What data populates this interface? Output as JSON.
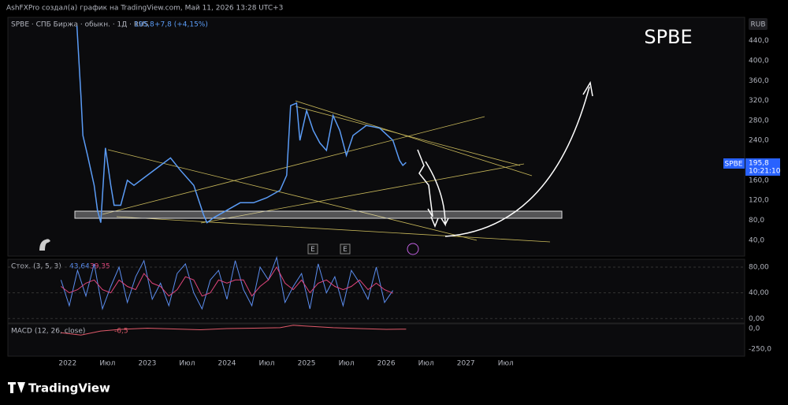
{
  "header": "AshFXPro создал(а) график на TradingView.com, Май 11, 2026 13:28 UTC+3",
  "chart_data": [
    {
      "type": "line",
      "title": "SPBE · СПБ Биржа · обыкн. · 1Д · RUS",
      "annotation": "SPBE",
      "currency": "RUB",
      "last_label": "195,8",
      "change": "+7,8 (+4,15%)",
      "countdown": "10:21:10",
      "events": [
        "E",
        "E"
      ],
      "xlim": [
        -9,
        102
      ],
      "xticks": [
        {
          "value": 0,
          "label": "2022"
        },
        {
          "value": 6,
          "label": "Июл"
        },
        {
          "value": 12,
          "label": "2023"
        },
        {
          "value": 18,
          "label": "Июл"
        },
        {
          "value": 24,
          "label": "2024"
        },
        {
          "value": 30,
          "label": "Июл"
        },
        {
          "value": 36,
          "label": "2025"
        },
        {
          "value": 42,
          "label": "Июл"
        },
        {
          "value": 48,
          "label": "2026"
        },
        {
          "value": 54,
          "label": "Июл"
        },
        {
          "value": 60,
          "label": "2027"
        },
        {
          "value": 66,
          "label": "Июл"
        }
      ],
      "ylim": [
        8,
        487
      ],
      "yticks": [
        {
          "value": 40,
          "label": "40,0"
        },
        {
          "value": 80,
          "label": "80,0"
        },
        {
          "value": 120,
          "label": "120,0"
        },
        {
          "value": 160,
          "label": "160,0"
        },
        {
          "value": 240,
          "label": "240,0"
        },
        {
          "value": 280,
          "label": "280,0"
        },
        {
          "value": 320,
          "label": "320,0"
        },
        {
          "value": 360,
          "label": "360,0"
        },
        {
          "value": 400,
          "label": "400,0"
        },
        {
          "value": 440,
          "label": "440,0"
        }
      ],
      "series": [
        {
          "name": "SPBE",
          "color": "#5b9cf6",
          "x": [
            1.4,
            2,
            2.3,
            3,
            4,
            4.5,
            5,
            5.7,
            6.5,
            7,
            8,
            9,
            10,
            12,
            14,
            15.5,
            17,
            19,
            20.5,
            21,
            22,
            24,
            26,
            28,
            30,
            32,
            33,
            33.6,
            34.5,
            35,
            36,
            37,
            38,
            39,
            40,
            41,
            42,
            43,
            45,
            47,
            49,
            50,
            50.5,
            51
          ],
          "values": [
            470,
            330,
            250,
            210,
            150,
            100,
            75,
            225,
            150,
            110,
            110,
            160,
            150,
            170,
            190,
            205,
            180,
            150,
            90,
            75,
            85,
            100,
            115,
            115,
            125,
            140,
            170,
            310,
            315,
            240,
            300,
            260,
            235,
            220,
            290,
            260,
            210,
            250,
            270,
            265,
            240,
            200,
            190,
            195.8
          ]
        }
      ]
    },
    {
      "type": "line",
      "title": "Стох. (3, 5, 3)",
      "ylim": [
        -7,
        91
      ],
      "yticks": [
        {
          "value": 80,
          "label": "80,00"
        },
        {
          "value": 40,
          "label": "40,00"
        },
        {
          "value": 0,
          "label": "0,00"
        }
      ],
      "series": [
        {
          "color": "#5b8def",
          "last_label": "43,64",
          "x": [
            -1,
            0.25,
            1.5,
            2.75,
            4,
            5.25,
            6.5,
            7.75,
            9,
            10.25,
            11.5,
            12.75,
            14,
            15.25,
            16.5,
            17.75,
            19,
            20.25,
            21.5,
            22.75,
            24,
            25.25,
            26.5,
            27.75,
            29,
            30.25,
            31.5,
            32.75,
            34,
            35.25,
            36.5,
            37.75,
            39,
            40.25,
            41.5,
            42.75,
            44,
            45.25,
            46.5,
            47.75,
            49
          ],
          "values": [
            60,
            20,
            75,
            35,
            85,
            15,
            50,
            80,
            25,
            65,
            90,
            30,
            55,
            20,
            70,
            85,
            40,
            15,
            60,
            75,
            30,
            90,
            45,
            20,
            80,
            60,
            95,
            25,
            50,
            70,
            15,
            85,
            40,
            65,
            20,
            75,
            55,
            30,
            80,
            25,
            43.64
          ]
        },
        {
          "color": "#e0457b",
          "last_label": "39,35",
          "x": [
            -1,
            0.25,
            1.5,
            2.75,
            4,
            5.25,
            6.5,
            7.75,
            9,
            10.25,
            11.5,
            12.75,
            14,
            15.25,
            16.5,
            17.75,
            19,
            20.25,
            21.5,
            22.75,
            24,
            25.25,
            26.5,
            27.75,
            29,
            30.25,
            31.5,
            32.75,
            34,
            35.25,
            36.5,
            37.75,
            39,
            40.25,
            41.5,
            42.75,
            44,
            45.25,
            46.5,
            47.75,
            49
          ],
          "values": [
            50,
            40,
            45,
            55,
            60,
            45,
            40,
            60,
            50,
            45,
            70,
            55,
            50,
            35,
            45,
            65,
            60,
            35,
            40,
            60,
            55,
            60,
            60,
            35,
            50,
            60,
            80,
            55,
            45,
            60,
            40,
            55,
            60,
            50,
            45,
            50,
            60,
            45,
            55,
            45,
            39.35
          ]
        }
      ]
    },
    {
      "type": "line",
      "title": "MACD (12, 26, close)",
      "ylim": [
        -337,
        48
      ],
      "yticks": [
        {
          "value": 0,
          "label": "0,0"
        },
        {
          "value": -250,
          "label": "-250,0"
        }
      ],
      "series": [
        {
          "color": "#e05a6a",
          "last_label": "-6,5",
          "x": [
            -1,
            2,
            5,
            8,
            12,
            16,
            20,
            24,
            28,
            32,
            34,
            36,
            40,
            44,
            48,
            51
          ],
          "values": [
            -50,
            -80,
            -30,
            -10,
            5,
            -5,
            -15,
            0,
            5,
            10,
            40,
            30,
            10,
            0,
            -10,
            -6.5
          ]
        }
      ]
    }
  ],
  "footer": "TradingView"
}
